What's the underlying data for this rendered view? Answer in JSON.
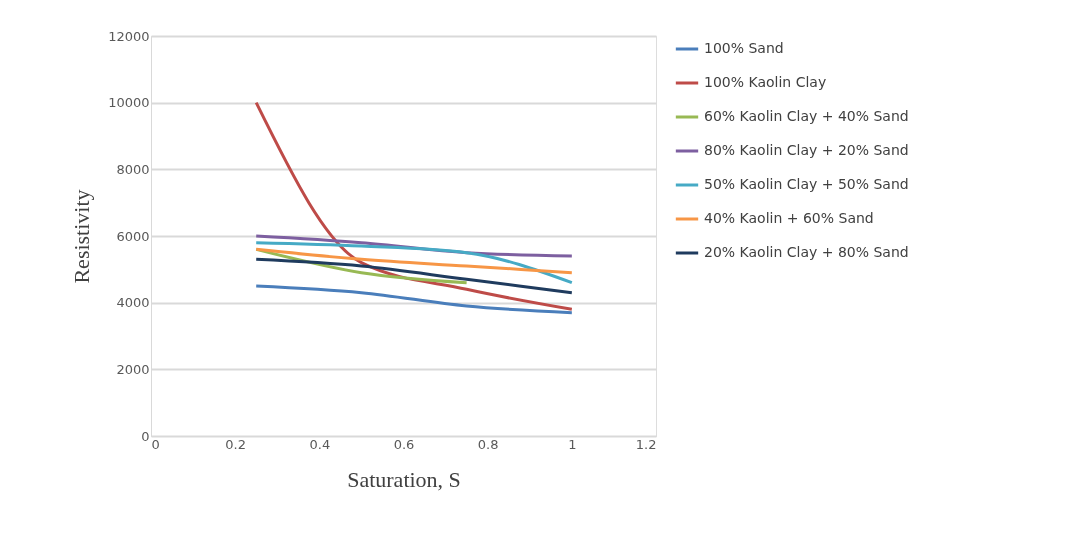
{
  "chart_data": {
    "type": "line",
    "xlabel": "Saturation, S",
    "ylabel": "Resistivity",
    "x": [
      0.25,
      0.5,
      0.75,
      1
    ],
    "series": [
      {
        "name": "100% Sand",
        "color": "#4a7ebb",
        "values": [
          4500,
          4300,
          3900,
          3700
        ]
      },
      {
        "name": "100% Kaolin Clay",
        "color": "#be4b48",
        "values": [
          10000,
          5200,
          4400,
          3800
        ]
      },
      {
        "name": "60% Kaolin Clay + 40% Sand",
        "color": "#98b954",
        "values": [
          5600,
          4900,
          4600,
          null
        ]
      },
      {
        "name": "80% Kaolin Clay + 20% Sand",
        "color": "#7d5fa0",
        "values": [
          6000,
          5800,
          5500,
          5400
        ]
      },
      {
        "name": "50% Kaolin Clay + 50% Sand",
        "color": "#46aac5",
        "values": [
          5800,
          5700,
          5500,
          4600
        ]
      },
      {
        "name": "40% Kaolin + 60% Sand",
        "color": "#f79646",
        "values": [
          5600,
          5300,
          5100,
          4900
        ]
      },
      {
        "name": "20% Kaolin Clay + 80% Sand",
        "color": "#1f3b5e",
        "values": [
          5300,
          5100,
          4700,
          4300
        ]
      }
    ],
    "xlim": [
      0,
      1.2
    ],
    "xticks": [
      0,
      0.2,
      0.4,
      0.6,
      0.8,
      1,
      1.2
    ],
    "ylim": [
      0,
      12000
    ],
    "yticks": [
      0,
      2000,
      4000,
      6000,
      8000,
      10000,
      12000
    ],
    "grid": "y",
    "legend": "right",
    "marker": "none",
    "line_style": "solid"
  }
}
